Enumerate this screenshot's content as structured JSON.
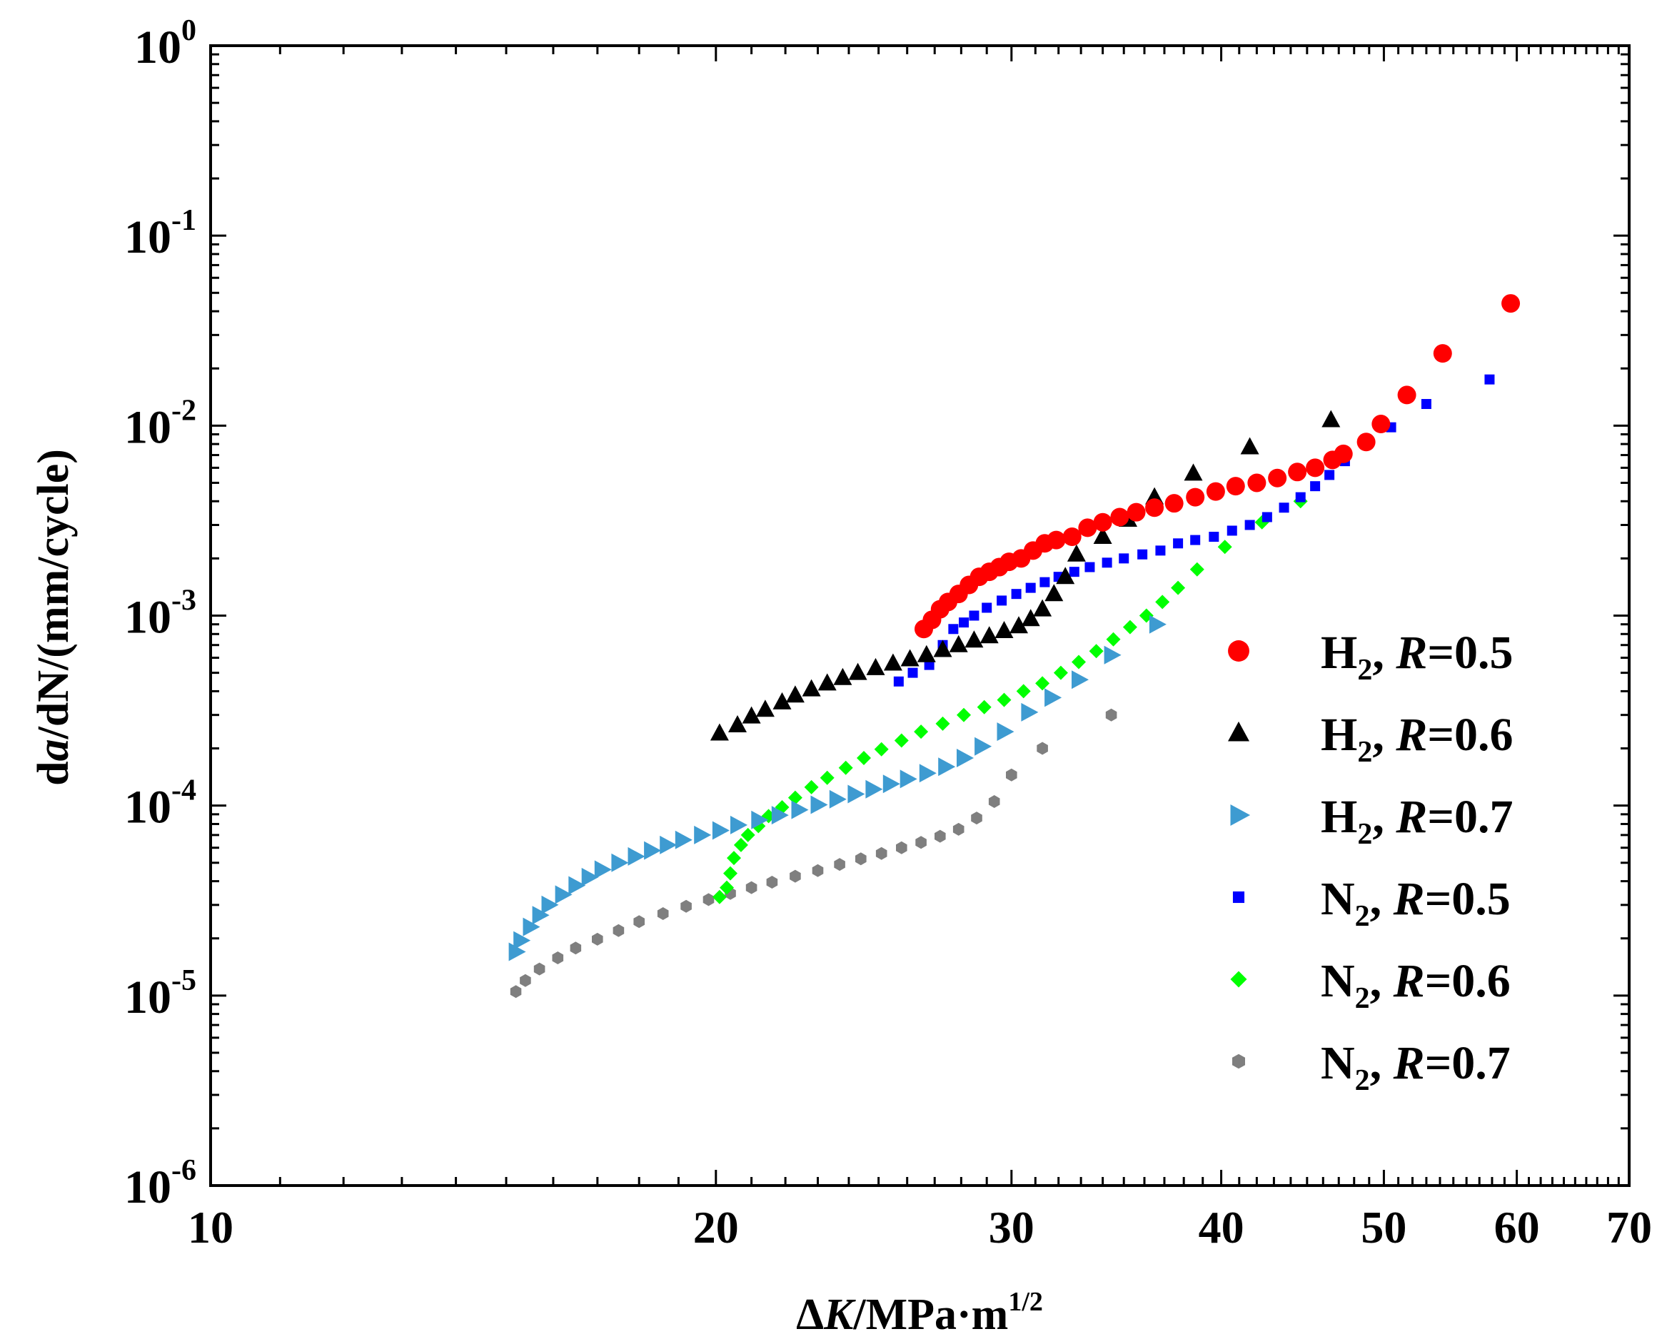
{
  "chart_data": {
    "type": "scatter",
    "title": "",
    "xscale": "log",
    "yscale": "log",
    "xlim": [
      10,
      70
    ],
    "ylim": [
      1e-06,
      1
    ],
    "xticks": [
      {
        "value": 10,
        "label": "10"
      },
      {
        "value": 20,
        "label": "20"
      },
      {
        "value": 30,
        "label": "30"
      },
      {
        "value": 40,
        "label": "40"
      },
      {
        "value": 50,
        "label": "50"
      },
      {
        "value": 60,
        "label": "60"
      },
      {
        "value": 70,
        "label": "70"
      }
    ],
    "yticks": [
      {
        "value": 1e-06,
        "base": "10",
        "exp": "-6"
      },
      {
        "value": 1e-05,
        "base": "10",
        "exp": "-5"
      },
      {
        "value": 0.0001,
        "base": "10",
        "exp": "-4"
      },
      {
        "value": 0.001,
        "base": "10",
        "exp": "-3"
      },
      {
        "value": 0.01,
        "base": "10",
        "exp": "-2"
      },
      {
        "value": 0.1,
        "base": "10",
        "exp": "-1"
      },
      {
        "value": 1,
        "base": "10",
        "exp": "0"
      }
    ],
    "xlabel": {
      "delta": "Δ",
      "var": "K",
      "unit": "/MPa·m",
      "exp": "1/2"
    },
    "ylabel": {
      "d1": "d",
      "var1": "a",
      "mid": "/dN/(mm/cycle)"
    },
    "legend_position": "right",
    "series": [
      {
        "name": "H2, R=0.5",
        "gas": "H",
        "sub": "2",
        "rlabel": "R",
        "rvalue": "=0.5",
        "marker": "circle",
        "color": "#ff0000",
        "points": [
          [
            26.6,
            0.00085
          ],
          [
            26.9,
            0.00095
          ],
          [
            27.2,
            0.00108
          ],
          [
            27.5,
            0.00118
          ],
          [
            27.9,
            0.0013
          ],
          [
            28.3,
            0.00145
          ],
          [
            28.7,
            0.0016
          ],
          [
            29.1,
            0.0017
          ],
          [
            29.5,
            0.0018
          ],
          [
            29.9,
            0.00192
          ],
          [
            30.4,
            0.002
          ],
          [
            30.9,
            0.0022
          ],
          [
            31.4,
            0.0024
          ],
          [
            31.9,
            0.0025
          ],
          [
            32.6,
            0.0026
          ],
          [
            33.3,
            0.0029
          ],
          [
            34.0,
            0.0031
          ],
          [
            34.8,
            0.0033
          ],
          [
            35.6,
            0.0035
          ],
          [
            36.5,
            0.0037
          ],
          [
            37.5,
            0.0039
          ],
          [
            38.6,
            0.0042
          ],
          [
            39.7,
            0.0045
          ],
          [
            40.8,
            0.0048
          ],
          [
            42.0,
            0.005
          ],
          [
            43.2,
            0.0053
          ],
          [
            44.4,
            0.0057
          ],
          [
            45.5,
            0.006
          ],
          [
            46.6,
            0.0066
          ],
          [
            47.3,
            0.0071
          ],
          [
            48.8,
            0.0082
          ],
          [
            49.8,
            0.0102
          ],
          [
            51.6,
            0.0145
          ],
          [
            54.2,
            0.024
          ],
          [
            59.5,
            0.044
          ]
        ]
      },
      {
        "name": "H2, R=0.6",
        "gas": "H",
        "sub": "2",
        "rlabel": "R",
        "rvalue": "=0.6",
        "marker": "triangle",
        "color": "#000000",
        "points": [
          [
            20.1,
            0.00024
          ],
          [
            20.6,
            0.000265
          ],
          [
            21.0,
            0.000295
          ],
          [
            21.4,
            0.00032
          ],
          [
            21.9,
            0.00035
          ],
          [
            22.3,
            0.00038
          ],
          [
            22.8,
            0.00041
          ],
          [
            23.3,
            0.00044
          ],
          [
            23.8,
            0.00047
          ],
          [
            24.3,
            0.0005
          ],
          [
            24.9,
            0.00053
          ],
          [
            25.5,
            0.00056
          ],
          [
            26.1,
            0.00059
          ],
          [
            26.7,
            0.00062
          ],
          [
            27.3,
            0.00066
          ],
          [
            27.9,
            0.0007
          ],
          [
            28.5,
            0.00074
          ],
          [
            29.1,
            0.00078
          ],
          [
            29.7,
            0.00083
          ],
          [
            30.3,
            0.00088
          ],
          [
            30.8,
            0.00096
          ],
          [
            31.3,
            0.00108
          ],
          [
            31.8,
            0.0013
          ],
          [
            32.3,
            0.0016
          ],
          [
            32.8,
            0.0021
          ],
          [
            34.0,
            0.0026
          ],
          [
            35.2,
            0.0032
          ],
          [
            36.5,
            0.0042
          ],
          [
            38.5,
            0.0056
          ],
          [
            41.6,
            0.0077
          ],
          [
            46.5,
            0.0107
          ]
        ]
      },
      {
        "name": "H2, R=0.7",
        "gas": "H",
        "sub": "2",
        "rlabel": "R",
        "rvalue": "=0.7",
        "marker": "right-triangle",
        "color": "#3e9bd1",
        "points": [
          [
            15.2,
            1.7e-05
          ],
          [
            15.3,
            1.95e-05
          ],
          [
            15.5,
            2.3e-05
          ],
          [
            15.7,
            2.65e-05
          ],
          [
            15.9,
            3e-05
          ],
          [
            16.2,
            3.4e-05
          ],
          [
            16.5,
            3.8e-05
          ],
          [
            16.8,
            4.2e-05
          ],
          [
            17.1,
            4.6e-05
          ],
          [
            17.5,
            5e-05
          ],
          [
            17.9,
            5.4e-05
          ],
          [
            18.3,
            5.8e-05
          ],
          [
            18.7,
            6.2e-05
          ],
          [
            19.1,
            6.6e-05
          ],
          [
            19.6,
            7e-05
          ],
          [
            20.1,
            7.4e-05
          ],
          [
            20.6,
            7.9e-05
          ],
          [
            21.2,
            8.4e-05
          ],
          [
            21.8,
            8.9e-05
          ],
          [
            22.4,
            9.5e-05
          ],
          [
            23.0,
            0.000101
          ],
          [
            23.6,
            0.000108
          ],
          [
            24.2,
            0.000115
          ],
          [
            24.8,
            0.000122
          ],
          [
            25.4,
            0.00013
          ],
          [
            26.0,
            0.000138
          ],
          [
            26.7,
            0.000148
          ],
          [
            27.4,
            0.00016
          ],
          [
            28.1,
            0.000178
          ],
          [
            28.8,
            0.000205
          ],
          [
            29.7,
            0.000245
          ],
          [
            30.7,
            0.00031
          ],
          [
            31.7,
            0.00037
          ],
          [
            32.9,
            0.00046
          ],
          [
            34.4,
            0.00062
          ],
          [
            36.6,
            0.0009
          ]
        ]
      },
      {
        "name": "N2, R=0.5",
        "gas": "N",
        "sub": "2",
        "rlabel": "R",
        "rvalue": "=0.5",
        "marker": "square",
        "color": "#0000ff",
        "points": [
          [
            25.7,
            0.00045
          ],
          [
            26.2,
            0.0005
          ],
          [
            26.8,
            0.00055
          ],
          [
            27.3,
            0.0007
          ],
          [
            27.7,
            0.00085
          ],
          [
            28.1,
            0.00092
          ],
          [
            28.5,
            0.001
          ],
          [
            29.0,
            0.0011
          ],
          [
            29.6,
            0.0012
          ],
          [
            30.2,
            0.0013
          ],
          [
            30.8,
            0.0014
          ],
          [
            31.4,
            0.0015
          ],
          [
            32.0,
            0.0016
          ],
          [
            32.7,
            0.0017
          ],
          [
            33.4,
            0.0018
          ],
          [
            34.2,
            0.0019
          ],
          [
            35.0,
            0.002
          ],
          [
            35.9,
            0.0021
          ],
          [
            36.8,
            0.0022
          ],
          [
            37.7,
            0.0024
          ],
          [
            38.6,
            0.0025
          ],
          [
            39.6,
            0.0026
          ],
          [
            40.6,
            0.0028
          ],
          [
            41.6,
            0.003
          ],
          [
            42.6,
            0.0033
          ],
          [
            43.6,
            0.0037
          ],
          [
            44.6,
            0.0042
          ],
          [
            45.5,
            0.0048
          ],
          [
            46.4,
            0.0055
          ],
          [
            47.4,
            0.0065
          ],
          [
            50.5,
            0.0098
          ],
          [
            53.0,
            0.013
          ],
          [
            57.8,
            0.0175
          ]
        ]
      },
      {
        "name": "N2, R=0.6",
        "gas": "N",
        "sub": "2",
        "rlabel": "R",
        "rvalue": "=0.6",
        "marker": "diamond",
        "color": "#00ff00",
        "points": [
          [
            20.1,
            3.3e-05
          ],
          [
            20.3,
            3.7e-05
          ],
          [
            20.4,
            4.4e-05
          ],
          [
            20.5,
            5.3e-05
          ],
          [
            20.7,
            6.2e-05
          ],
          [
            20.9,
            7e-05
          ],
          [
            21.2,
            7.8e-05
          ],
          [
            21.5,
            8.8e-05
          ],
          [
            21.9,
            9.8e-05
          ],
          [
            22.3,
            0.00011
          ],
          [
            22.8,
            0.000125
          ],
          [
            23.3,
            0.00014
          ],
          [
            23.9,
            0.000158
          ],
          [
            24.5,
            0.000178
          ],
          [
            25.1,
            0.000198
          ],
          [
            25.8,
            0.00022
          ],
          [
            26.5,
            0.000245
          ],
          [
            27.3,
            0.00027
          ],
          [
            28.1,
            0.0003
          ],
          [
            28.9,
            0.00033
          ],
          [
            29.7,
            0.00036
          ],
          [
            30.5,
            0.0004
          ],
          [
            31.3,
            0.00044
          ],
          [
            32.1,
            0.0005
          ],
          [
            32.9,
            0.00057
          ],
          [
            33.7,
            0.00065
          ],
          [
            34.5,
            0.00075
          ],
          [
            35.3,
            0.00087
          ],
          [
            36.1,
            0.001
          ],
          [
            36.9,
            0.00118
          ],
          [
            37.7,
            0.0014
          ],
          [
            38.7,
            0.00175
          ],
          [
            40.2,
            0.0023
          ],
          [
            42.3,
            0.0031
          ],
          [
            44.6,
            0.004
          ]
        ]
      },
      {
        "name": "N2, R=0.7",
        "gas": "N",
        "sub": "2",
        "rlabel": "R",
        "rvalue": "=0.7",
        "marker": "hexagon",
        "color": "#7f7f7f",
        "points": [
          [
            15.2,
            1.05e-05
          ],
          [
            15.4,
            1.2e-05
          ],
          [
            15.7,
            1.38e-05
          ],
          [
            16.1,
            1.58e-05
          ],
          [
            16.5,
            1.78e-05
          ],
          [
            17.0,
            1.98e-05
          ],
          [
            17.5,
            2.2e-05
          ],
          [
            18.0,
            2.45e-05
          ],
          [
            18.6,
            2.7e-05
          ],
          [
            19.2,
            2.95e-05
          ],
          [
            19.8,
            3.2e-05
          ],
          [
            20.4,
            3.45e-05
          ],
          [
            21.0,
            3.7e-05
          ],
          [
            21.6,
            3.95e-05
          ],
          [
            22.3,
            4.25e-05
          ],
          [
            23.0,
            4.55e-05
          ],
          [
            23.7,
            4.9e-05
          ],
          [
            24.4,
            5.25e-05
          ],
          [
            25.1,
            5.6e-05
          ],
          [
            25.8,
            6e-05
          ],
          [
            26.5,
            6.4e-05
          ],
          [
            27.2,
            6.9e-05
          ],
          [
            27.9,
            7.5e-05
          ],
          [
            28.6,
            8.6e-05
          ],
          [
            29.3,
            0.000105
          ],
          [
            30.0,
            0.000145
          ],
          [
            31.3,
            0.0002
          ],
          [
            34.4,
            0.0003
          ]
        ]
      }
    ]
  }
}
